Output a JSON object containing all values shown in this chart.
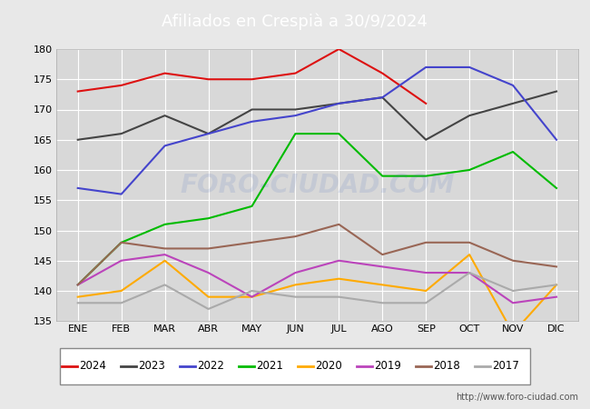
{
  "title_display": "Afiliados en Crespià a 30/9/2024",
  "x_labels": [
    "ENE",
    "FEB",
    "MAR",
    "ABR",
    "MAY",
    "JUN",
    "JUL",
    "AGO",
    "SEP",
    "OCT",
    "NOV",
    "DIC"
  ],
  "ylim": [
    135,
    180
  ],
  "yticks": [
    135,
    140,
    145,
    150,
    155,
    160,
    165,
    170,
    175,
    180
  ],
  "series": {
    "2024": {
      "color": "#dd1111",
      "values": [
        173,
        174,
        176,
        175,
        175,
        176,
        180,
        176,
        171,
        null,
        null,
        null
      ]
    },
    "2023": {
      "color": "#444444",
      "values": [
        165,
        166,
        169,
        166,
        170,
        170,
        171,
        172,
        165,
        169,
        171,
        173
      ]
    },
    "2022": {
      "color": "#4444cc",
      "values": [
        157,
        156,
        164,
        166,
        168,
        169,
        171,
        172,
        177,
        177,
        174,
        165
      ]
    },
    "2021": {
      "color": "#00bb00",
      "values": [
        141,
        148,
        151,
        152,
        154,
        166,
        166,
        159,
        159,
        160,
        163,
        157
      ]
    },
    "2020": {
      "color": "#ffaa00",
      "values": [
        139,
        140,
        145,
        139,
        139,
        141,
        142,
        141,
        140,
        146,
        133,
        141
      ]
    },
    "2019": {
      "color": "#bb44bb",
      "values": [
        141,
        145,
        146,
        143,
        139,
        143,
        145,
        144,
        143,
        143,
        138,
        139
      ]
    },
    "2018": {
      "color": "#996655",
      "values": [
        141,
        148,
        147,
        147,
        148,
        149,
        151,
        146,
        148,
        148,
        145,
        144
      ]
    },
    "2017": {
      "color": "#aaaaaa",
      "values": [
        138,
        138,
        141,
        137,
        140,
        139,
        139,
        138,
        138,
        143,
        140,
        141
      ]
    }
  },
  "series_order": [
    "2024",
    "2023",
    "2022",
    "2021",
    "2020",
    "2019",
    "2018",
    "2017"
  ],
  "outer_bg": "#e8e8e8",
  "plot_bg": "#d8d8d8",
  "header_color": "#4466bb",
  "grid_color": "#ffffff",
  "watermark": "FORO-CIUDAD.COM",
  "watermark_color": "#4466bb",
  "watermark_alpha": 0.13,
  "footer_url": "http://www.foro-ciudad.com",
  "linewidth": 1.5,
  "title_fontsize": 13,
  "tick_fontsize": 8,
  "legend_fontsize": 8.5,
  "footer_fontsize": 7
}
